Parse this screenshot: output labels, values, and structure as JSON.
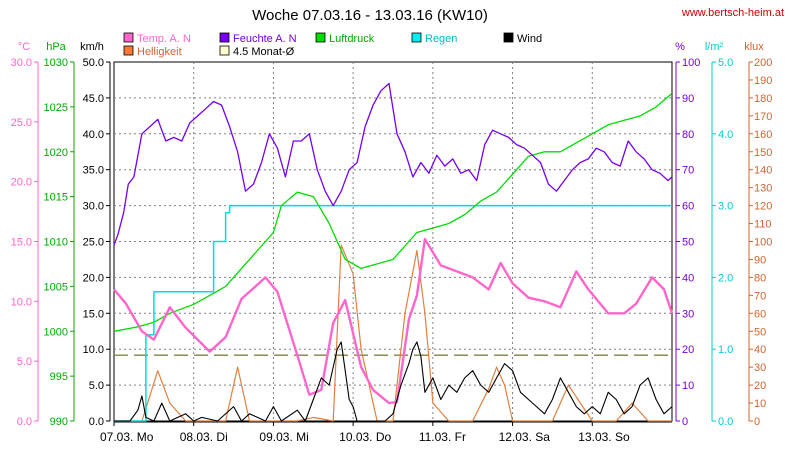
{
  "chart_data": {
    "type": "line",
    "title": "Woche 07.03.16 - 13.03.16 (KW10)",
    "site": "www.bertsch-heim.at",
    "x_labels": [
      "07.03.  Mo",
      "08.03.  Di",
      "09.03.  Mi",
      "10.03.  Do",
      "11.03.  Fr",
      "12.03.  Sa",
      "13.03.  So"
    ],
    "xlim": [
      0,
      7
    ],
    "axes": {
      "temp": {
        "label": "°C",
        "range": [
          0,
          30
        ],
        "ticks": [
          "0.0",
          "5.0",
          "10.0",
          "15.0",
          "20.0",
          "25.0",
          "30.0"
        ],
        "color": "#ff66cc"
      },
      "pressure": {
        "label": "hPa",
        "range": [
          990,
          1030
        ],
        "ticks": [
          "990",
          "995",
          "1000",
          "1005",
          "1010",
          "1015",
          "1020",
          "1025",
          "1030"
        ],
        "color": "#00aa00"
      },
      "wind": {
        "label": "km/h",
        "range": [
          0,
          50
        ],
        "ticks": [
          "0.0",
          "5.0",
          "10.0",
          "15.0",
          "20.0",
          "25.0",
          "30.0",
          "35.0",
          "40.0",
          "45.0",
          "50.0"
        ],
        "color": "#000000"
      },
      "humidity": {
        "label": "%",
        "range": [
          0,
          100
        ],
        "ticks": [
          "0",
          "10",
          "20",
          "30",
          "40",
          "50",
          "60",
          "70",
          "80",
          "90",
          "100"
        ],
        "color": "#7700dd"
      },
      "rain": {
        "label": "l/m²",
        "range": [
          0,
          5
        ],
        "ticks": [
          "0.0",
          "1.0",
          "2.0",
          "3.0",
          "4.0",
          "5.0"
        ],
        "color": "#00cccc"
      },
      "light": {
        "label": "klux",
        "range": [
          0,
          200
        ],
        "ticks": [
          "0",
          "10",
          "20",
          "30",
          "40",
          "50",
          "60",
          "70",
          "80",
          "90",
          "100",
          "110",
          "120",
          "130",
          "140",
          "150",
          "160",
          "170",
          "180",
          "190",
          "200"
        ],
        "color": "#cc6633"
      }
    },
    "legend": [
      {
        "name": "Temp. A. N",
        "color": "#ff66cc"
      },
      {
        "name": "Feuchte A. N",
        "color": "#7700ee"
      },
      {
        "name": "Luftdruck",
        "color": "#00dd00"
      },
      {
        "name": "Regen",
        "color": "#00eeee"
      },
      {
        "name": "Wind",
        "color": "#000000"
      },
      {
        "name": "Helligkeit",
        "color": "#ff7733"
      },
      {
        "name": "4.5 Monat-Ø",
        "color": "#ffffcc"
      }
    ],
    "monthly_avg_temp": 5.5,
    "series": {
      "temp": {
        "x": [
          0,
          0.15,
          0.35,
          0.5,
          0.7,
          0.9,
          1.2,
          1.4,
          1.6,
          1.9,
          2.05,
          2.3,
          2.45,
          2.6,
          2.75,
          2.9,
          3.1,
          3.25,
          3.45,
          3.55,
          3.7,
          3.8,
          3.9,
          4.1,
          4.3,
          4.5,
          4.7,
          4.85,
          5.0,
          5.2,
          5.4,
          5.6,
          5.8,
          5.95,
          6.2,
          6.4,
          6.55,
          6.75,
          6.9,
          7.0
        ],
        "y": [
          11,
          9.8,
          7.5,
          6.8,
          9.5,
          7.8,
          5.8,
          7,
          10.2,
          12,
          10.8,
          5.5,
          2.2,
          2.6,
          8.2,
          10.1,
          4.5,
          2.6,
          1.5,
          1.6,
          8.5,
          10.5,
          15.2,
          13,
          12.5,
          12,
          11,
          13.2,
          11.5,
          10.3,
          10,
          9.5,
          12.5,
          11,
          9,
          9,
          9.8,
          12,
          11,
          9
        ]
      },
      "humidity": {
        "x": [
          0,
          0.05,
          0.12,
          0.18,
          0.25,
          0.35,
          0.45,
          0.55,
          0.65,
          0.75,
          0.85,
          0.95,
          1.05,
          1.15,
          1.25,
          1.35,
          1.45,
          1.55,
          1.65,
          1.75,
          1.85,
          1.95,
          2.05,
          2.15,
          2.25,
          2.35,
          2.45,
          2.55,
          2.65,
          2.75,
          2.85,
          2.95,
          3.05,
          3.15,
          3.25,
          3.35,
          3.45,
          3.55,
          3.65,
          3.75,
          3.85,
          3.95,
          4.05,
          4.15,
          4.25,
          4.35,
          4.45,
          4.55,
          4.65,
          4.75,
          4.85,
          4.95,
          5.05,
          5.15,
          5.25,
          5.35,
          5.45,
          5.55,
          5.65,
          5.75,
          5.85,
          5.95,
          6.05,
          6.15,
          6.25,
          6.35,
          6.45,
          6.55,
          6.65,
          6.75,
          6.85,
          6.95,
          7.0
        ],
        "y": [
          49,
          52,
          58,
          66,
          68,
          80,
          82,
          84,
          78,
          79,
          78,
          83,
          85,
          87,
          89,
          88,
          82,
          75,
          64,
          66,
          72,
          80,
          76,
          68,
          78,
          78,
          80,
          70,
          64,
          60,
          64,
          70,
          72,
          82,
          88,
          92,
          94,
          80,
          75,
          68,
          72,
          69,
          74,
          71,
          73,
          69,
          70,
          67,
          77,
          81,
          80,
          79,
          77,
          76,
          74,
          72,
          66,
          64,
          67,
          70,
          72,
          73,
          76,
          75,
          72,
          71,
          78,
          75,
          73,
          70,
          69,
          67,
          68
        ]
      },
      "pressure": {
        "x": [
          0,
          0.3,
          0.5,
          0.7,
          1.0,
          1.2,
          1.4,
          1.6,
          1.8,
          2.0,
          2.1,
          2.3,
          2.5,
          2.7,
          2.9,
          3.1,
          3.3,
          3.5,
          3.7,
          3.8,
          4.0,
          4.2,
          4.4,
          4.6,
          4.8,
          5.0,
          5.2,
          5.4,
          5.6,
          5.8,
          6.0,
          6.2,
          6.4,
          6.6,
          6.8,
          7.0
        ],
        "y": [
          1000,
          1000.5,
          1001,
          1002,
          1003,
          1004,
          1005,
          1007,
          1009,
          1011,
          1014,
          1015.5,
          1015,
          1012,
          1008,
          1007,
          1007.5,
          1008,
          1010,
          1011,
          1011.5,
          1012,
          1013,
          1014.5,
          1015.5,
          1017.5,
          1019.5,
          1020,
          1020,
          1021,
          1022,
          1023,
          1023.5,
          1024,
          1025,
          1026.5
        ]
      },
      "rain": {
        "x": [
          0,
          0.3,
          0.4,
          0.5,
          1.2,
          1.25,
          1.4,
          1.45,
          1.6,
          2.0,
          3.0,
          4.0,
          5.0,
          6.0,
          7.0
        ],
        "y": [
          0,
          0,
          1.2,
          1.8,
          1.8,
          2.5,
          2.9,
          3.0,
          3.0,
          3.0,
          3.0,
          3.0,
          3.0,
          3.0,
          3.0
        ]
      },
      "wind": {
        "x": [
          0,
          0.2,
          0.3,
          0.35,
          0.4,
          0.5,
          0.6,
          0.7,
          0.9,
          1.0,
          1.1,
          1.3,
          1.5,
          1.6,
          1.7,
          1.8,
          1.9,
          2.0,
          2.1,
          2.3,
          2.4,
          2.5,
          2.6,
          2.7,
          2.8,
          2.85,
          2.9,
          2.95,
          3.0,
          3.05,
          3.1,
          3.2,
          3.3,
          3.4,
          3.5,
          3.6,
          3.7,
          3.75,
          3.8,
          3.85,
          3.9,
          4.0,
          4.1,
          4.2,
          4.3,
          4.4,
          4.5,
          4.6,
          4.7,
          4.8,
          4.9,
          5.0,
          5.1,
          5.2,
          5.3,
          5.4,
          5.5,
          5.6,
          5.7,
          5.8,
          5.9,
          6.0,
          6.1,
          6.2,
          6.3,
          6.4,
          6.5,
          6.6,
          6.7,
          6.8,
          6.9,
          7.0
        ],
        "y": [
          0,
          0,
          1.5,
          3.5,
          0.5,
          0,
          2.5,
          0,
          1,
          0,
          0.5,
          0,
          2,
          0,
          1,
          0.5,
          0,
          2,
          0,
          1.5,
          0,
          3,
          6,
          5,
          10,
          11,
          7,
          3,
          2,
          0,
          0,
          0,
          0,
          0,
          1,
          5,
          8,
          10,
          11,
          9,
          4,
          6,
          3,
          5,
          4,
          6,
          7,
          5,
          4,
          6,
          8,
          7,
          4,
          3,
          2,
          1,
          3,
          6,
          4,
          2,
          1,
          2,
          1,
          4,
          3,
          1,
          2,
          5,
          6,
          3,
          1,
          2
        ]
      },
      "light": {
        "x": [
          0,
          0.35,
          0.55,
          0.7,
          0.9,
          1.0,
          1.4,
          1.55,
          1.7,
          2.0,
          2.3,
          2.5,
          2.75,
          2.85,
          3.0,
          3.1,
          3.3,
          3.5,
          3.65,
          3.8,
          3.9,
          4.0,
          4.2,
          4.3,
          4.5,
          4.7,
          4.8,
          4.9,
          5.0,
          5.5,
          5.7,
          6.0,
          6.3,
          6.5,
          6.7,
          7.0
        ],
        "y": [
          0,
          0,
          28,
          10,
          0,
          0,
          0,
          30,
          0,
          0,
          0,
          2,
          0,
          98,
          82,
          40,
          0,
          0,
          60,
          95,
          60,
          10,
          0,
          0,
          0,
          18,
          30,
          20,
          0,
          0,
          20,
          0,
          0,
          10,
          0,
          0
        ]
      }
    }
  }
}
